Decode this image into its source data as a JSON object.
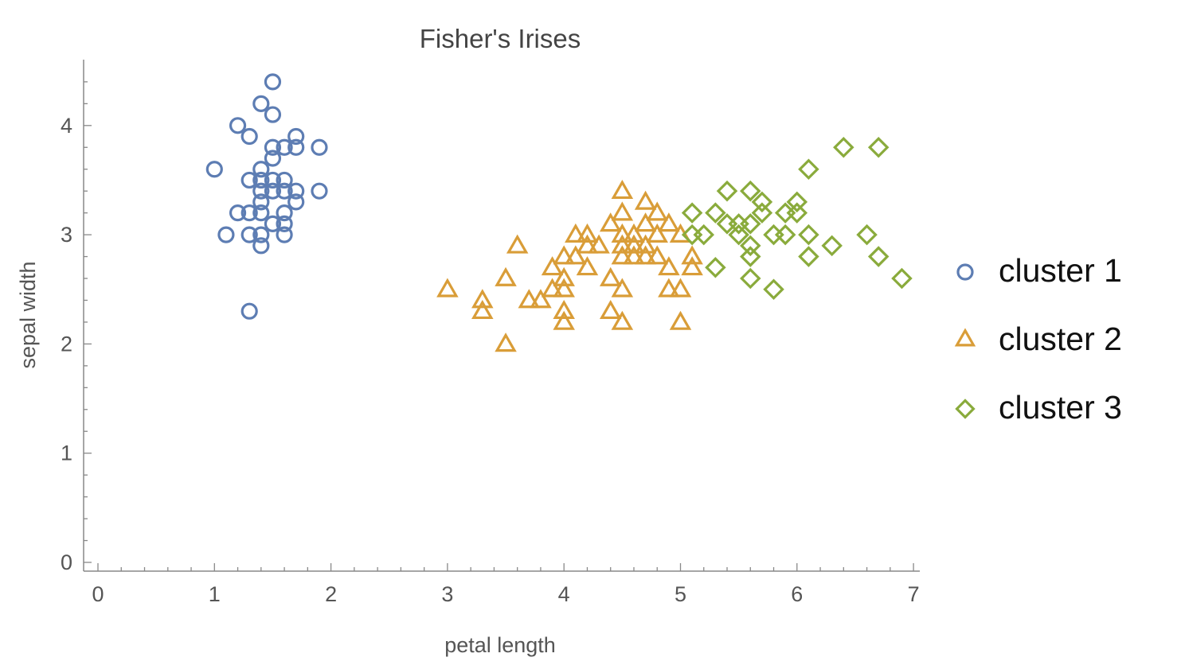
{
  "chart_data": {
    "type": "scatter",
    "title": "Fisher's Irises",
    "xlabel": "petal length",
    "ylabel": "sepal width",
    "xlim": [
      -0.12,
      7.05
    ],
    "ylim": [
      -0.08,
      4.6
    ],
    "xticks": [
      0,
      1,
      2,
      3,
      4,
      5,
      6,
      7
    ],
    "yticks": [
      0,
      1,
      2,
      3,
      4
    ],
    "grid": false,
    "legend": "right",
    "series": [
      {
        "name": "cluster 1",
        "marker": "circle",
        "color": "#5d7db3",
        "points": [
          [
            1.5,
            4.4
          ],
          [
            1.4,
            4.2
          ],
          [
            1.5,
            4.1
          ],
          [
            1.2,
            4.0
          ],
          [
            1.3,
            3.9
          ],
          [
            1.7,
            3.9
          ],
          [
            1.5,
            3.8
          ],
          [
            1.6,
            3.8
          ],
          [
            1.7,
            3.8
          ],
          [
            1.9,
            3.8
          ],
          [
            1.5,
            3.7
          ],
          [
            1.0,
            3.6
          ],
          [
            1.4,
            3.6
          ],
          [
            1.3,
            3.5
          ],
          [
            1.4,
            3.5
          ],
          [
            1.5,
            3.5
          ],
          [
            1.6,
            3.5
          ],
          [
            1.4,
            3.4
          ],
          [
            1.5,
            3.4
          ],
          [
            1.6,
            3.4
          ],
          [
            1.7,
            3.4
          ],
          [
            1.9,
            3.4
          ],
          [
            1.4,
            3.3
          ],
          [
            1.7,
            3.3
          ],
          [
            1.2,
            3.2
          ],
          [
            1.3,
            3.2
          ],
          [
            1.4,
            3.2
          ],
          [
            1.6,
            3.2
          ],
          [
            1.5,
            3.1
          ],
          [
            1.6,
            3.1
          ],
          [
            1.1,
            3.0
          ],
          [
            1.3,
            3.0
          ],
          [
            1.4,
            3.0
          ],
          [
            1.6,
            3.0
          ],
          [
            1.4,
            2.9
          ],
          [
            1.3,
            2.3
          ]
        ]
      },
      {
        "name": "cluster 2",
        "marker": "triangle",
        "color": "#d99d38",
        "points": [
          [
            4.5,
            3.4
          ],
          [
            4.7,
            3.3
          ],
          [
            4.5,
            3.2
          ],
          [
            4.8,
            3.2
          ],
          [
            4.4,
            3.1
          ],
          [
            4.7,
            3.1
          ],
          [
            4.9,
            3.1
          ],
          [
            4.1,
            3.0
          ],
          [
            4.2,
            3.0
          ],
          [
            4.5,
            3.0
          ],
          [
            4.6,
            3.0
          ],
          [
            4.8,
            3.0
          ],
          [
            5.0,
            3.0
          ],
          [
            4.2,
            2.9
          ],
          [
            4.3,
            2.9
          ],
          [
            4.5,
            2.9
          ],
          [
            4.6,
            2.9
          ],
          [
            4.7,
            2.9
          ],
          [
            3.6,
            2.9
          ],
          [
            4.0,
            2.8
          ],
          [
            4.1,
            2.8
          ],
          [
            4.5,
            2.8
          ],
          [
            4.6,
            2.8
          ],
          [
            4.7,
            2.8
          ],
          [
            4.8,
            2.8
          ],
          [
            5.1,
            2.8
          ],
          [
            3.9,
            2.7
          ],
          [
            4.2,
            2.7
          ],
          [
            4.9,
            2.7
          ],
          [
            5.1,
            2.7
          ],
          [
            3.5,
            2.6
          ],
          [
            4.0,
            2.6
          ],
          [
            4.4,
            2.6
          ],
          [
            3.0,
            2.5
          ],
          [
            3.9,
            2.5
          ],
          [
            4.0,
            2.5
          ],
          [
            4.5,
            2.5
          ],
          [
            4.9,
            2.5
          ],
          [
            5.0,
            2.5
          ],
          [
            3.3,
            2.4
          ],
          [
            3.7,
            2.4
          ],
          [
            3.8,
            2.4
          ],
          [
            3.3,
            2.3
          ],
          [
            4.0,
            2.3
          ],
          [
            4.4,
            2.3
          ],
          [
            4.0,
            2.2
          ],
          [
            4.5,
            2.2
          ],
          [
            5.0,
            2.2
          ],
          [
            3.5,
            2.0
          ]
        ]
      },
      {
        "name": "cluster 3",
        "marker": "diamond",
        "color": "#8aab3c",
        "points": [
          [
            6.4,
            3.8
          ],
          [
            6.7,
            3.8
          ],
          [
            6.1,
            3.6
          ],
          [
            5.4,
            3.4
          ],
          [
            5.6,
            3.4
          ],
          [
            5.7,
            3.3
          ],
          [
            6.0,
            3.3
          ],
          [
            5.1,
            3.2
          ],
          [
            5.3,
            3.2
          ],
          [
            5.7,
            3.2
          ],
          [
            5.9,
            3.2
          ],
          [
            6.0,
            3.2
          ],
          [
            5.4,
            3.1
          ],
          [
            5.5,
            3.1
          ],
          [
            5.6,
            3.1
          ],
          [
            5.1,
            3.0
          ],
          [
            5.2,
            3.0
          ],
          [
            5.5,
            3.0
          ],
          [
            5.8,
            3.0
          ],
          [
            5.9,
            3.0
          ],
          [
            6.1,
            3.0
          ],
          [
            6.6,
            3.0
          ],
          [
            5.6,
            2.9
          ],
          [
            6.3,
            2.9
          ],
          [
            5.6,
            2.8
          ],
          [
            6.1,
            2.8
          ],
          [
            6.7,
            2.8
          ],
          [
            5.3,
            2.7
          ],
          [
            5.6,
            2.6
          ],
          [
            6.9,
            2.6
          ],
          [
            5.8,
            2.5
          ]
        ]
      }
    ]
  }
}
